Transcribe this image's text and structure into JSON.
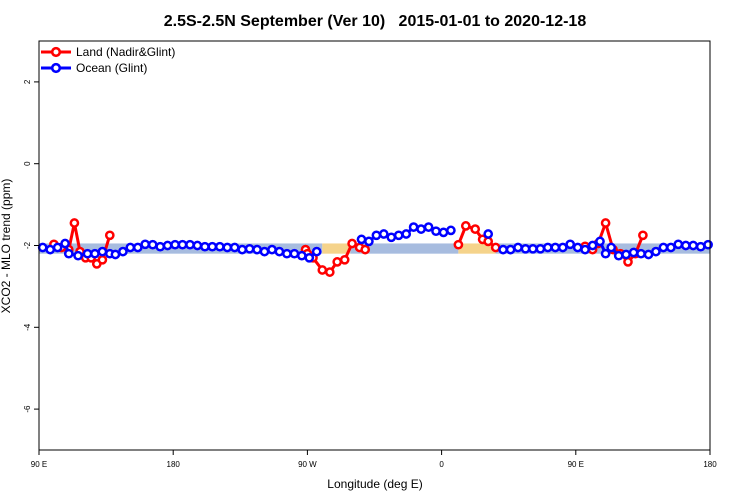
{
  "chart_data": {
    "type": "line",
    "title": "2.5S-2.5N September (Ver 10)   2015-01-01 to 2020-12-18",
    "xlabel": "Longitude (deg E)",
    "ylabel": "XCO2 - MLO trend (ppm)",
    "xlim": [
      0,
      360
    ],
    "ylim": [
      -7,
      3
    ],
    "x_ticks": [
      {
        "value": 0,
        "label": "90 E"
      },
      {
        "value": 72,
        "label": "180"
      },
      {
        "value": 144,
        "label": "90 W"
      },
      {
        "value": 216,
        "label": "0"
      },
      {
        "value": 288,
        "label": "90 E"
      },
      {
        "value": 360,
        "label": "180"
      }
    ],
    "y_ticks": [
      {
        "value": 2,
        "label": "2"
      },
      {
        "value": 0,
        "label": "0"
      },
      {
        "value": -2,
        "label": "-2"
      },
      {
        "value": -4,
        "label": "-4"
      },
      {
        "value": -6,
        "label": "-6"
      }
    ],
    "legend_position": "top-left",
    "band": {
      "ymin": -2.2,
      "ymax": -1.95,
      "segments": [
        {
          "x0": 0,
          "x1": 152,
          "color": "#a7bcdf"
        },
        {
          "x0": 152,
          "x1": 167,
          "color": "#f5d38b"
        },
        {
          "x0": 167,
          "x1": 225,
          "color": "#a7bcdf"
        },
        {
          "x0": 225,
          "x1": 245,
          "color": "#f5d38b"
        },
        {
          "x0": 245,
          "x1": 360,
          "color": "#a7bcdf"
        }
      ]
    },
    "series": [
      {
        "name": "Land (Nadir&Glint)",
        "color": "#ff0000",
        "segments": [
          [
            [
              8,
              -1.97
            ],
            [
              12,
              -2.05
            ],
            [
              16,
              -2.1
            ],
            [
              19,
              -1.45
            ],
            [
              22,
              -2.15
            ],
            [
              25,
              -2.3
            ],
            [
              28,
              -2.3
            ],
            [
              31,
              -2.45
            ],
            [
              34,
              -2.35
            ],
            [
              38,
              -1.75
            ]
          ],
          [
            [
              143,
              -2.1
            ],
            [
              144,
              -2.2
            ],
            [
              147,
              -2.3
            ],
            [
              152,
              -2.6
            ],
            [
              156,
              -2.65
            ],
            [
              160,
              -2.4
            ],
            [
              164,
              -2.35
            ],
            [
              168,
              -1.95
            ],
            [
              172,
              -2.05
            ],
            [
              175,
              -2.1
            ]
          ],
          [
            [
              225,
              -1.98
            ],
            [
              229,
              -1.52
            ],
            [
              234,
              -1.6
            ],
            [
              238,
              -1.85
            ],
            [
              241,
              -1.9
            ],
            [
              245,
              -2.05
            ]
          ],
          [
            [
              293,
              -2.02
            ],
            [
              297,
              -2.1
            ],
            [
              300,
              -1.95
            ],
            [
              304,
              -1.45
            ],
            [
              308,
              -2.1
            ],
            [
              312,
              -2.2
            ],
            [
              316,
              -2.4
            ],
            [
              320,
              -2.2
            ],
            [
              324,
              -1.75
            ]
          ]
        ]
      },
      {
        "name": "Ocean (Glint)",
        "color": "#0000ff",
        "segments": [
          [
            [
              2,
              -2.05
            ],
            [
              6,
              -2.1
            ],
            [
              10,
              -2.05
            ],
            [
              14,
              -1.95
            ],
            [
              16,
              -2.2
            ],
            [
              21,
              -2.25
            ],
            [
              26,
              -2.2
            ],
            [
              30,
              -2.2
            ],
            [
              34,
              -2.15
            ],
            [
              38,
              -2.2
            ],
            [
              41,
              -2.22
            ],
            [
              45,
              -2.15
            ],
            [
              49,
              -2.05
            ],
            [
              53,
              -2.05
            ],
            [
              57,
              -1.97
            ],
            [
              61,
              -1.98
            ],
            [
              65,
              -2.03
            ],
            [
              69,
              -2.0
            ],
            [
              73,
              -1.98
            ],
            [
              77,
              -1.98
            ],
            [
              81,
              -1.98
            ],
            [
              85,
              -2.0
            ],
            [
              89,
              -2.03
            ],
            [
              93,
              -2.03
            ],
            [
              97,
              -2.03
            ],
            [
              101,
              -2.05
            ],
            [
              105,
              -2.05
            ],
            [
              109,
              -2.1
            ],
            [
              113,
              -2.08
            ],
            [
              117,
              -2.1
            ],
            [
              121,
              -2.15
            ],
            [
              125,
              -2.1
            ],
            [
              129,
              -2.15
            ],
            [
              133,
              -2.2
            ],
            [
              137,
              -2.2
            ],
            [
              141,
              -2.25
            ],
            [
              145,
              -2.3
            ],
            [
              149,
              -2.15
            ]
          ],
          [
            [
              173,
              -1.85
            ],
            [
              177,
              -1.9
            ],
            [
              181,
              -1.75
            ],
            [
              185,
              -1.72
            ],
            [
              189,
              -1.8
            ],
            [
              193,
              -1.75
            ],
            [
              197,
              -1.72
            ],
            [
              201,
              -1.55
            ],
            [
              205,
              -1.6
            ],
            [
              209,
              -1.55
            ],
            [
              213,
              -1.65
            ],
            [
              217,
              -1.68
            ],
            [
              221,
              -1.63
            ]
          ],
          [
            [
              241,
              -1.72
            ]
          ],
          [
            [
              249,
              -2.1
            ],
            [
              253,
              -2.1
            ],
            [
              257,
              -2.05
            ],
            [
              261,
              -2.08
            ],
            [
              265,
              -2.08
            ],
            [
              269,
              -2.08
            ],
            [
              273,
              -2.05
            ],
            [
              277,
              -2.05
            ],
            [
              281,
              -2.05
            ],
            [
              285,
              -1.97
            ],
            [
              289,
              -2.05
            ],
            [
              293,
              -2.1
            ],
            [
              297,
              -2.0
            ],
            [
              301,
              -1.9
            ],
            [
              304,
              -2.2
            ],
            [
              307,
              -2.05
            ],
            [
              311,
              -2.25
            ],
            [
              315,
              -2.22
            ],
            [
              319,
              -2.17
            ],
            [
              323,
              -2.2
            ],
            [
              327,
              -2.22
            ],
            [
              331,
              -2.15
            ],
            [
              335,
              -2.05
            ],
            [
              339,
              -2.05
            ],
            [
              343,
              -1.97
            ],
            [
              347,
              -2.0
            ],
            [
              351,
              -2.0
            ],
            [
              355,
              -2.03
            ],
            [
              359,
              -1.98
            ]
          ]
        ]
      }
    ]
  }
}
